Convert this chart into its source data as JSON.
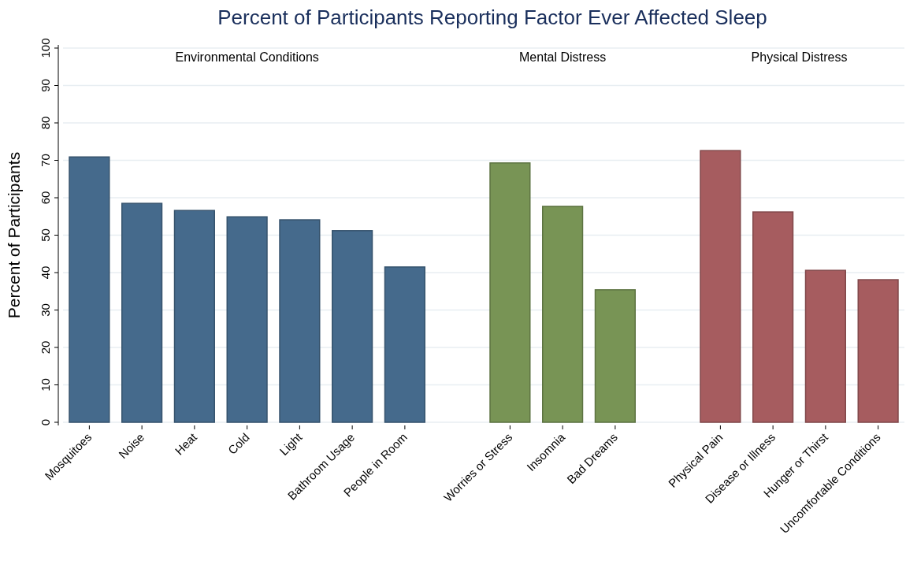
{
  "chart_data": {
    "type": "bar",
    "title": "Percent of Participants Reporting Factor Ever Affected Sleep",
    "ylabel": "Percent of Participants",
    "categories": [
      "Mosquitoes",
      "Noise",
      "Heat",
      "Cold",
      "Light",
      "Bathroom Usage",
      "People in Room",
      null,
      "Worries or Stress",
      "Insomnia",
      "Bad Dreams",
      null,
      "Physical Pain",
      "Disease or Illness",
      "Hunger or Thirst",
      "Uncomfortable Conditions"
    ],
    "values": [
      70.9,
      58.5,
      56.6,
      54.9,
      54.1,
      51.2,
      41.5,
      null,
      69.3,
      57.7,
      35.4,
      null,
      72.6,
      56.2,
      40.6,
      38.1
    ],
    "colors": [
      "#456a8c",
      "#456a8c",
      "#456a8c",
      "#456a8c",
      "#456a8c",
      "#456a8c",
      "#456a8c",
      null,
      "#789455",
      "#789455",
      "#789455",
      null,
      "#a65c5f",
      "#a65c5f",
      "#a65c5f",
      "#a65c5f"
    ],
    "annotations": [
      "Environmental Conditions",
      "Mental Distress",
      "Physical Distress"
    ],
    "ylim": [
      0,
      100
    ],
    "yticks": [
      0,
      10,
      20,
      30,
      40,
      50,
      60,
      70,
      80,
      90,
      100
    ],
    "grid": "y"
  }
}
